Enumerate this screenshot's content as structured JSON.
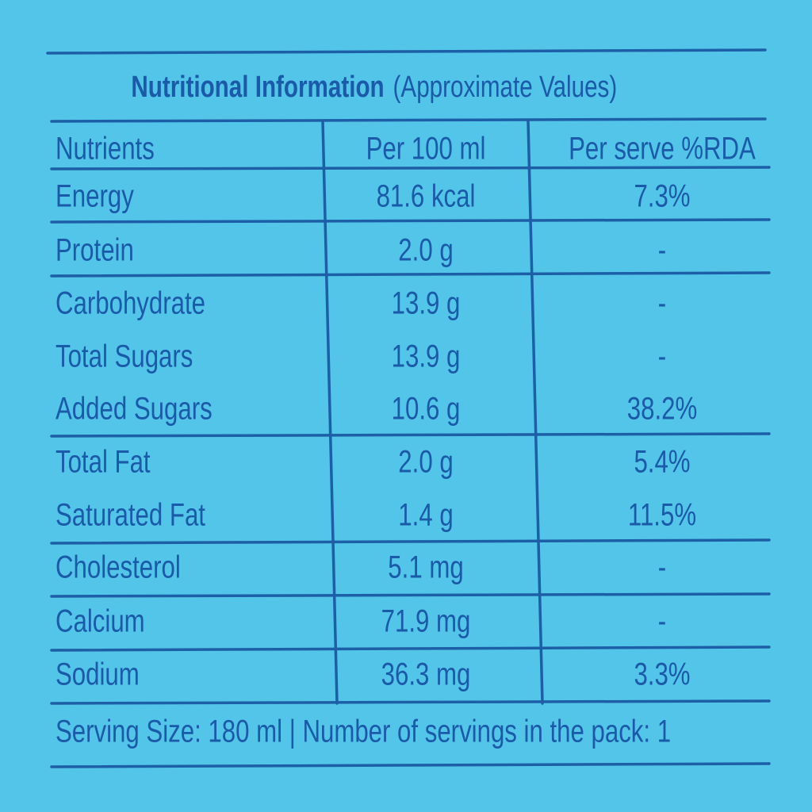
{
  "title": {
    "bold": "Nutritional Information",
    "normal": "(Approximate Values)"
  },
  "table": {
    "header": [
      "Nutrients",
      "Per 100 ml",
      "Per serve %RDA"
    ],
    "rows": [
      [
        "Energy",
        "81.6 kcal",
        "7.3%"
      ],
      [
        "Protein",
        "2.0 g",
        "-"
      ],
      [
        "Carbohydrate",
        "13.9 g",
        "-"
      ],
      [
        "Total Sugars",
        "13.9 g",
        "-"
      ],
      [
        "Added Sugars",
        "10.6 g",
        "38.2%"
      ],
      [
        "Total Fat",
        "2.0 g",
        "5.4%"
      ],
      [
        "Saturated Fat",
        "1.4 g",
        "11.5%"
      ],
      [
        "Cholesterol",
        "5.1 mg",
        "-"
      ],
      [
        "Calcium",
        "71.9 mg",
        "-"
      ],
      [
        "Sodium",
        "36.3 mg",
        "3.3%"
      ]
    ]
  },
  "footer": "Serving Size: 180 ml | Number of servings in the pack: 1"
}
